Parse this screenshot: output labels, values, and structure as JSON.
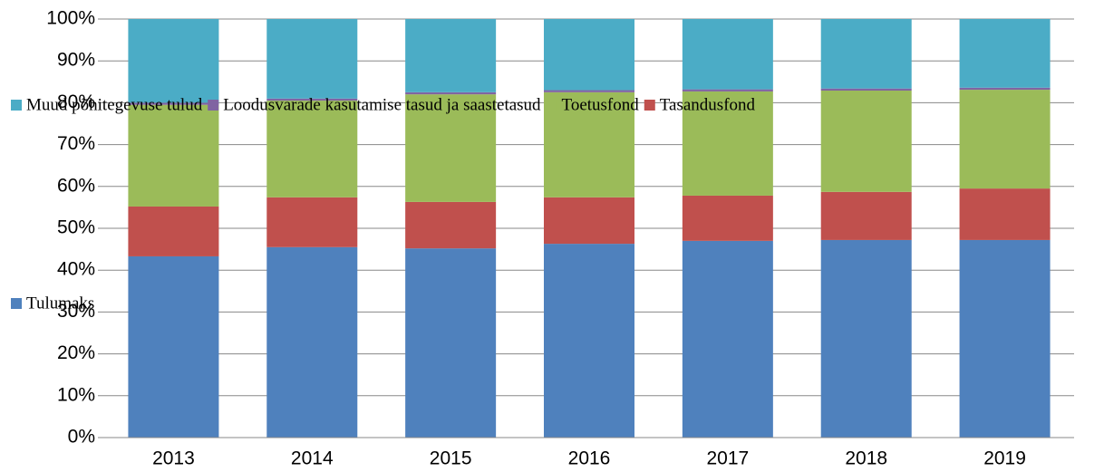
{
  "chart_data": {
    "type": "stacked_bar",
    "categories": [
      "2013",
      "2014",
      "2015",
      "2016",
      "2017",
      "2018",
      "2019"
    ],
    "series": [
      {
        "name": "Tulumaks",
        "color": "#4f81bd",
        "values": [
          43.3,
          45.5,
          45.2,
          46.3,
          47.0,
          47.2,
          47.2
        ]
      },
      {
        "name": "Tasandusfond",
        "color": "#c0504d",
        "values": [
          11.9,
          11.9,
          11.1,
          11.1,
          10.8,
          11.5,
          12.3
        ]
      },
      {
        "name": "Toetusfond",
        "color": "#9bbb59",
        "values": [
          24.3,
          23.1,
          25.7,
          25.1,
          24.9,
          24.2,
          23.6
        ]
      },
      {
        "name": "Loodusvarade kasutamise tasud ja saastetasud",
        "color": "#8064a2",
        "values": [
          0.5,
          0.5,
          0.5,
          0.5,
          0.5,
          0.5,
          0.5
        ]
      },
      {
        "name": "Muud põhitegevuse tulud",
        "color": "#4bacc6",
        "values": [
          20.0,
          19.0,
          17.5,
          17.0,
          16.8,
          16.6,
          16.4
        ]
      }
    ],
    "ylim": [
      0,
      100
    ],
    "yticks": [
      {
        "value": 0,
        "label": "0%"
      },
      {
        "value": 10,
        "label": "10%"
      },
      {
        "value": 20,
        "label": "20%"
      },
      {
        "value": 30,
        "label": "30%"
      },
      {
        "value": 40,
        "label": "40%"
      },
      {
        "value": 50,
        "label": "50%"
      },
      {
        "value": 60,
        "label": "60%"
      },
      {
        "value": 70,
        "label": "70%"
      },
      {
        "value": 80,
        "label": "80%"
      },
      {
        "value": 90,
        "label": "90%"
      },
      {
        "value": 100,
        "label": "100%"
      }
    ],
    "grid": true
  }
}
